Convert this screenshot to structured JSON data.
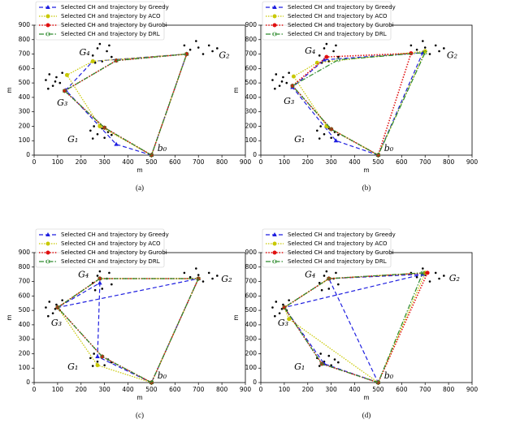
{
  "chart_data": [
    {
      "type": "line",
      "caption": "(a)",
      "xlabel": "m",
      "ylabel": "m",
      "xlim": [
        0,
        900
      ],
      "ylim": [
        0,
        900
      ],
      "xticks": [
        0,
        100,
        200,
        300,
        400,
        500,
        600,
        700,
        800,
        900
      ],
      "yticks": [
        0,
        100,
        200,
        300,
        400,
        500,
        600,
        700,
        800,
        900
      ],
      "annotations": [
        "G₁",
        "G₂",
        "G₃",
        "G₄",
        "b₀"
      ],
      "nodes": {
        "color": "#000000",
        "x": [
          240,
          255,
          270,
          290,
          300,
          315,
          250,
          330,
          640,
          665,
          690,
          720,
          745,
          760,
          780,
          700,
          50,
          65,
          80,
          95,
          110,
          60,
          120,
          90,
          250,
          270,
          290,
          310,
          330,
          280,
          260,
          320
        ],
        "y": [
          170,
          200,
          145,
          185,
          120,
          160,
          115,
          140,
          760,
          730,
          790,
          700,
          760,
          720,
          740,
          745,
          520,
          560,
          480,
          540,
          500,
          460,
          570,
          510,
          690,
          740,
          650,
          720,
          680,
          770,
          640,
          760
        ]
      },
      "series": [
        {
          "name": "Selected CH and trajectory by Greedy",
          "color": "#1f1fe0",
          "x": [
            500,
            350,
            135,
            250,
            650,
            500
          ],
          "y": [
            0,
            75,
            450,
            650,
            700,
            0
          ]
        },
        {
          "name": "Selected CH and trajectory by ACO",
          "color": "#c8c800",
          "x": [
            500,
            280,
            140,
            250,
            650,
            500
          ],
          "y": [
            0,
            200,
            555,
            650,
            700,
            0
          ]
        },
        {
          "name": "Selected CH and trajectory by Gurobi",
          "color": "#e01010",
          "x": [
            500,
            300,
            130,
            350,
            650,
            500
          ],
          "y": [
            0,
            190,
            445,
            655,
            700,
            0
          ]
        },
        {
          "name": "Selected CH and trajectory by DRL",
          "color": "#2e8b2e",
          "x": [
            500,
            300,
            130,
            350,
            650,
            500
          ],
          "y": [
            0,
            190,
            445,
            655,
            700,
            0
          ]
        }
      ]
    },
    {
      "type": "line",
      "caption": "(b)",
      "xlabel": "m",
      "ylabel": "m",
      "xlim": [
        0,
        900
      ],
      "ylim": [
        0,
        900
      ],
      "xticks": [
        0,
        100,
        200,
        300,
        400,
        500,
        600,
        700,
        800,
        900
      ],
      "yticks": [
        0,
        100,
        200,
        300,
        400,
        500,
        600,
        700,
        800,
        900
      ],
      "annotations": [
        "G₁",
        "G₂",
        "G₃",
        "G₄",
        "b₀"
      ],
      "nodes": {
        "color": "#000000",
        "x": [
          240,
          255,
          270,
          290,
          300,
          315,
          250,
          330,
          640,
          665,
          690,
          720,
          745,
          760,
          780,
          700,
          50,
          65,
          80,
          95,
          110,
          60,
          120,
          90,
          250,
          270,
          290,
          310,
          330,
          280,
          260,
          320
        ],
        "y": [
          170,
          200,
          145,
          185,
          120,
          160,
          115,
          140,
          760,
          730,
          790,
          700,
          760,
          720,
          740,
          745,
          520,
          560,
          480,
          540,
          500,
          460,
          570,
          510,
          690,
          740,
          650,
          720,
          680,
          770,
          640,
          760
        ]
      },
      "series": [
        {
          "name": "Selected CH and trajectory by Greedy",
          "color": "#1f1fe0",
          "x": [
            500,
            320,
            135,
            270,
            690,
            500
          ],
          "y": [
            0,
            100,
            470,
            660,
            710,
            0
          ]
        },
        {
          "name": "Selected CH and trajectory by ACO",
          "color": "#c8c800",
          "x": [
            500,
            280,
            140,
            240,
            700,
            500
          ],
          "y": [
            0,
            200,
            545,
            640,
            720,
            0
          ]
        },
        {
          "name": "Selected CH and trajectory by Gurobi",
          "color": "#e01010",
          "x": [
            500,
            300,
            135,
            280,
            640,
            500
          ],
          "y": [
            0,
            180,
            480,
            680,
            705,
            0
          ]
        },
        {
          "name": "Selected CH and trajectory by DRL",
          "color": "#2e8b2e",
          "x": [
            500,
            300,
            135,
            330,
            700,
            500
          ],
          "y": [
            0,
            180,
            480,
            660,
            710,
            0
          ]
        }
      ]
    },
    {
      "type": "line",
      "caption": "(c)",
      "xlabel": "m",
      "ylabel": "m",
      "xlim": [
        0,
        900
      ],
      "ylim": [
        0,
        900
      ],
      "xticks": [
        0,
        100,
        200,
        300,
        400,
        500,
        600,
        700,
        800,
        900
      ],
      "yticks": [
        0,
        100,
        200,
        300,
        400,
        500,
        600,
        700,
        800,
        900
      ],
      "annotations": [
        "G₁",
        "G₂",
        "G₃",
        "G₄",
        "b₀"
      ],
      "nodes": {
        "color": "#000000",
        "x": [
          240,
          255,
          270,
          290,
          300,
          315,
          250,
          330,
          640,
          665,
          690,
          720,
          745,
          760,
          780,
          700,
          50,
          65,
          80,
          95,
          110,
          60,
          120,
          90,
          250,
          270,
          290,
          310,
          330,
          280,
          260,
          320
        ],
        "y": [
          170,
          200,
          145,
          185,
          120,
          160,
          115,
          140,
          760,
          730,
          790,
          700,
          760,
          720,
          740,
          745,
          520,
          560,
          480,
          540,
          500,
          460,
          570,
          510,
          690,
          740,
          650,
          720,
          680,
          770,
          640,
          760
        ]
      },
      "series": [
        {
          "name": "Selected CH and trajectory by Greedy",
          "color": "#1f1fe0",
          "x": [
            500,
            270,
            280,
            100,
            700,
            500
          ],
          "y": [
            0,
            180,
            690,
            520,
            720,
            0
          ]
        },
        {
          "name": "Selected CH and trajectory by ACO",
          "color": "#c8c800",
          "x": [
            500,
            270,
            100,
            280,
            700,
            500
          ],
          "y": [
            0,
            120,
            520,
            720,
            720,
            0
          ]
        },
        {
          "name": "Selected CH and trajectory by Gurobi",
          "color": "#e01010",
          "x": [
            500,
            290,
            100,
            280,
            700,
            500
          ],
          "y": [
            0,
            180,
            520,
            720,
            720,
            0
          ]
        },
        {
          "name": "Selected CH and trajectory by DRL",
          "color": "#2e8b2e",
          "x": [
            500,
            290,
            100,
            280,
            700,
            500
          ],
          "y": [
            0,
            180,
            520,
            720,
            720,
            0
          ]
        }
      ]
    },
    {
      "type": "line",
      "caption": "(d)",
      "xlabel": "m",
      "ylabel": "m",
      "xlim": [
        0,
        900
      ],
      "ylim": [
        0,
        900
      ],
      "xticks": [
        0,
        100,
        200,
        300,
        400,
        500,
        600,
        700,
        800,
        900
      ],
      "yticks": [
        0,
        100,
        200,
        300,
        400,
        500,
        600,
        700,
        800,
        900
      ],
      "annotations": [
        "G₁",
        "G₂",
        "G₃",
        "G₄",
        "b₀"
      ],
      "nodes": {
        "color": "#000000",
        "x": [
          240,
          255,
          270,
          290,
          300,
          315,
          250,
          330,
          640,
          665,
          690,
          720,
          745,
          760,
          780,
          700,
          50,
          65,
          80,
          95,
          110,
          60,
          120,
          90,
          250,
          270,
          290,
          310,
          330,
          280,
          260,
          320
        ],
        "y": [
          170,
          200,
          145,
          185,
          120,
          160,
          115,
          140,
          760,
          730,
          790,
          700,
          760,
          720,
          740,
          745,
          520,
          560,
          480,
          540,
          500,
          460,
          570,
          510,
          690,
          740,
          650,
          720,
          680,
          770,
          640,
          760
        ]
      },
      "series": [
        {
          "name": "Selected CH and trajectory by Greedy",
          "color": "#1f1fe0",
          "x": [
            500,
            270,
            100,
            690,
            290,
            500
          ],
          "y": [
            0,
            130,
            520,
            750,
            720,
            0
          ]
        },
        {
          "name": "Selected CH and trajectory by ACO",
          "color": "#c8c800",
          "x": [
            500,
            120,
            100,
            290,
            700,
            500
          ],
          "y": [
            0,
            440,
            520,
            720,
            760,
            0
          ]
        },
        {
          "name": "Selected CH and trajectory by Gurobi",
          "color": "#e01010",
          "x": [
            500,
            260,
            100,
            290,
            710,
            500
          ],
          "y": [
            0,
            130,
            520,
            720,
            760,
            0
          ]
        },
        {
          "name": "Selected CH and trajectory by DRL",
          "color": "#2e8b2e",
          "x": [
            500,
            260,
            100,
            290,
            690,
            500
          ],
          "y": [
            0,
            130,
            520,
            720,
            760,
            0
          ]
        }
      ]
    }
  ]
}
